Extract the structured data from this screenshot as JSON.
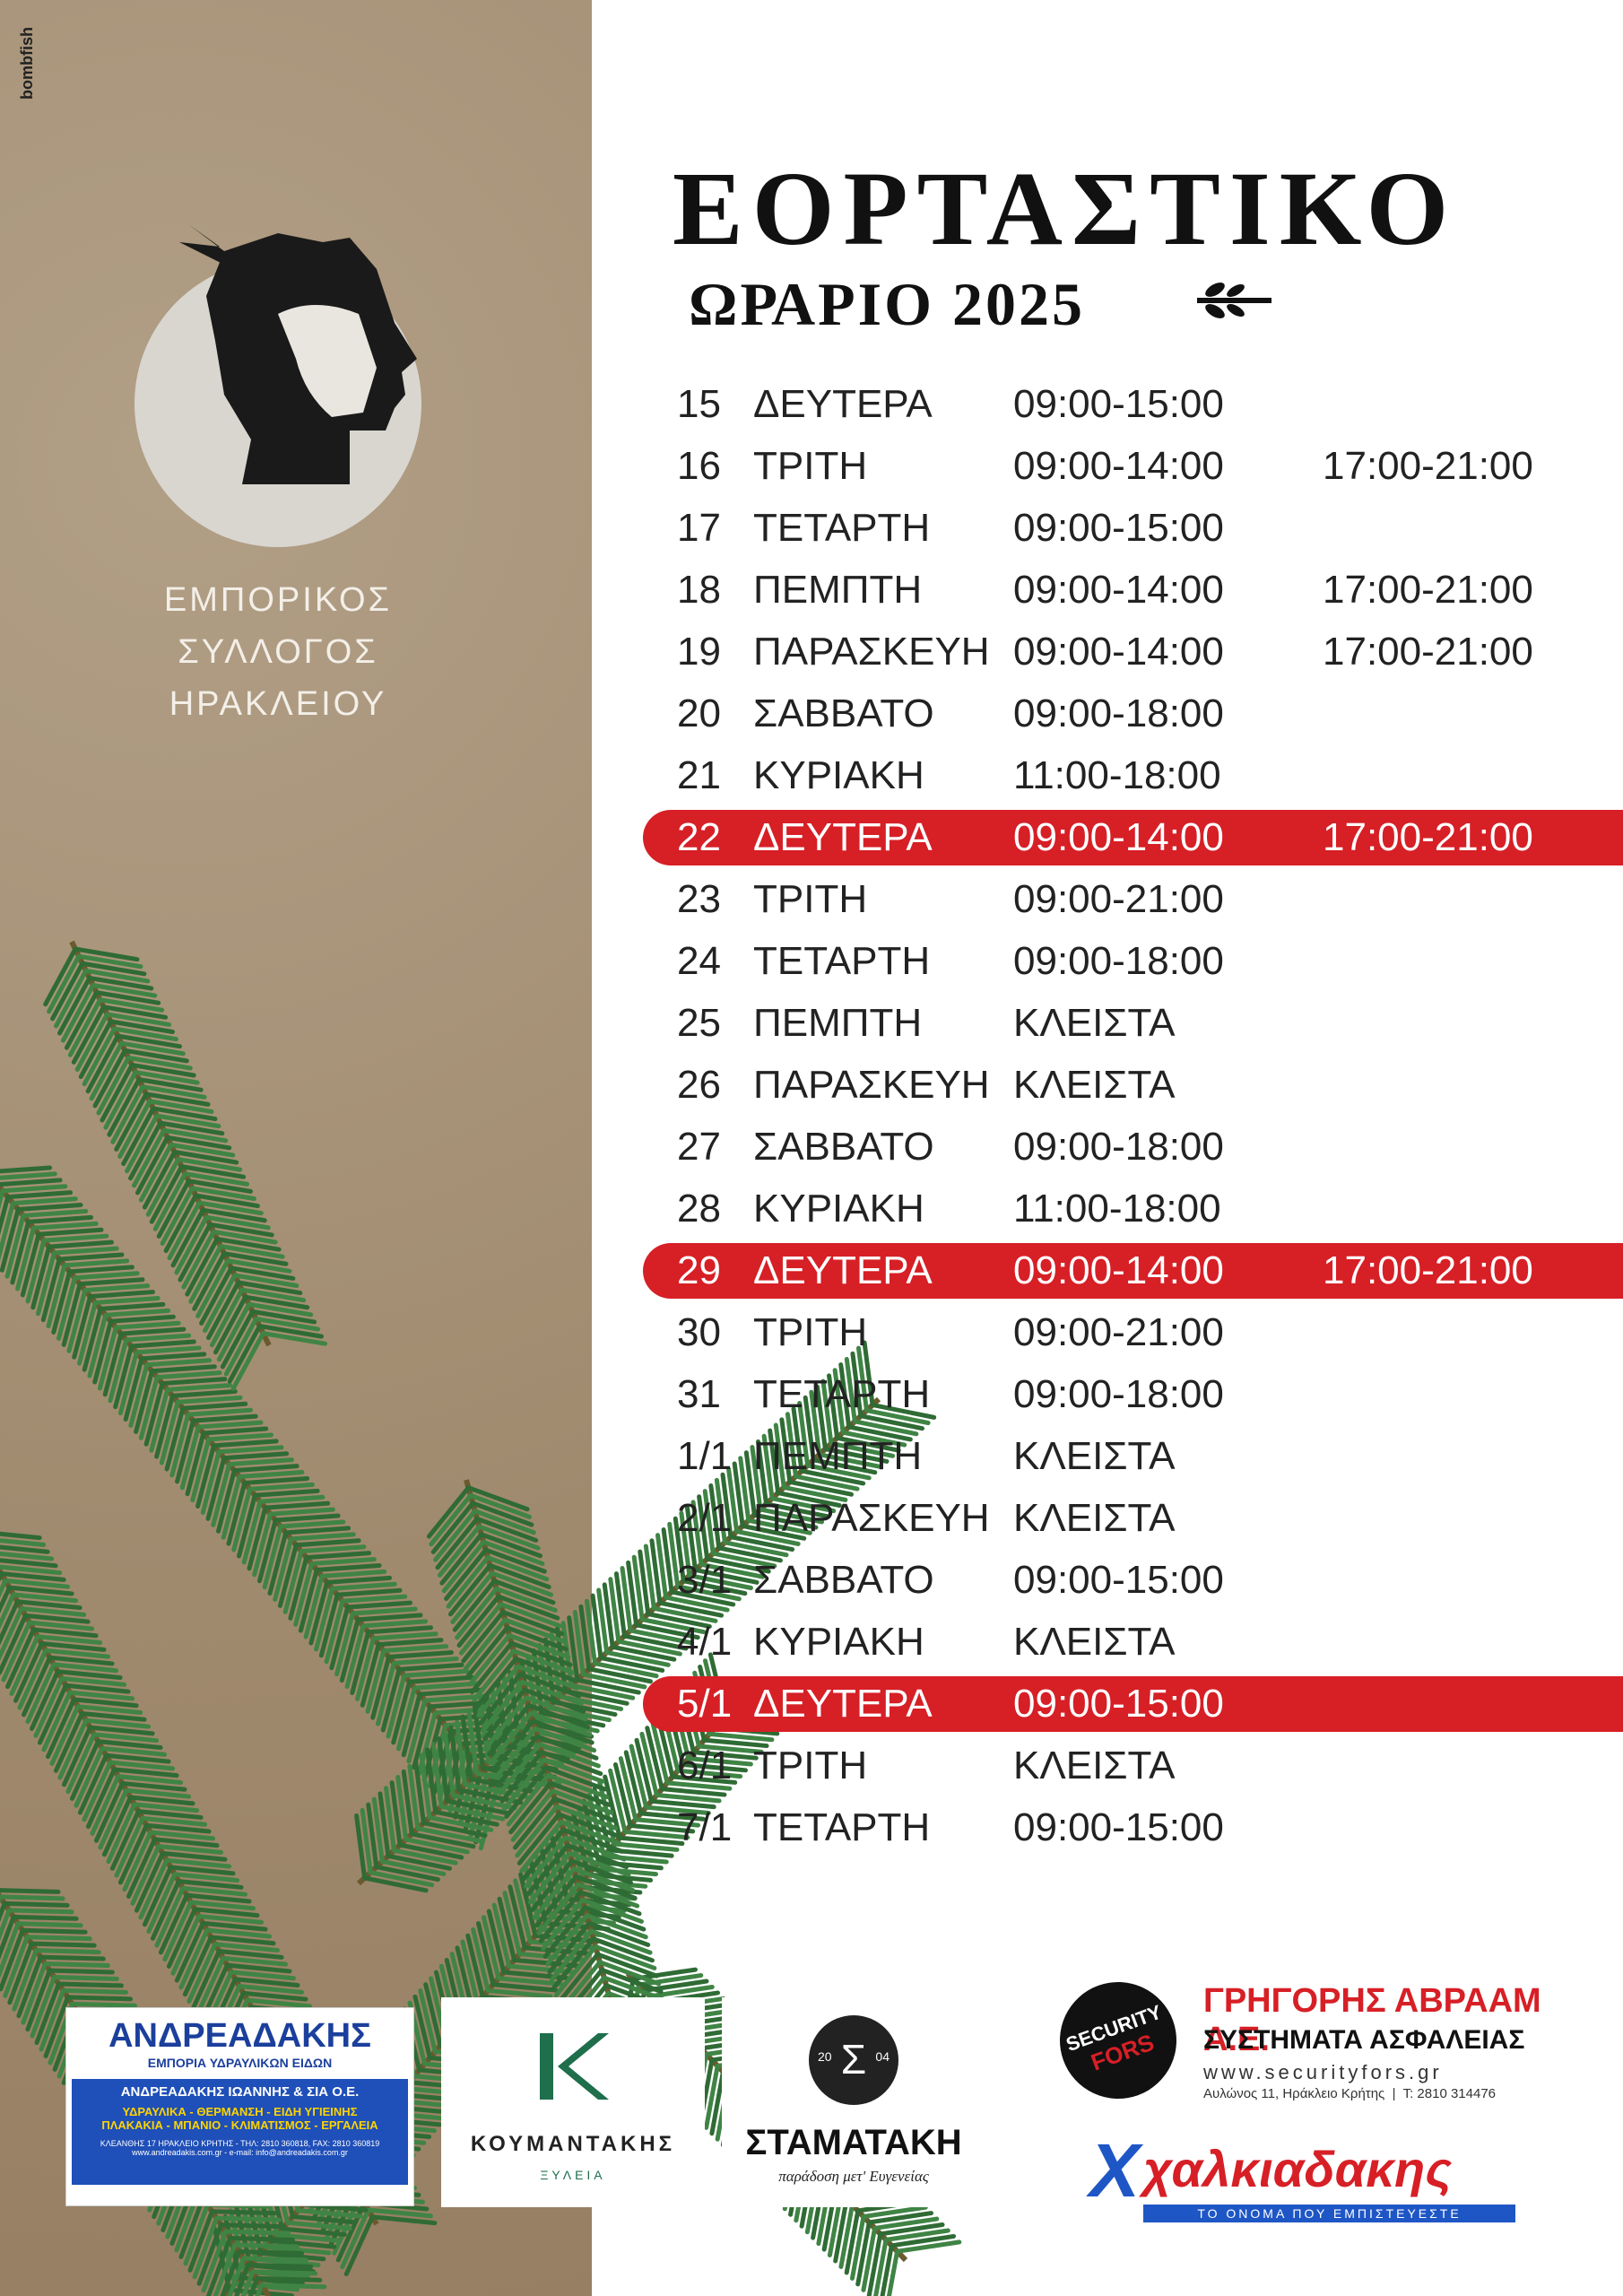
{
  "brand": "bombfish",
  "title": "ΕΟΡΤΑΣΤΙΚΟ",
  "subtitle": "ΩΡΑΡΙΟ 2025",
  "association": [
    "ΕΜΠΟΡΙΚΟΣ",
    "ΣΥΛΛΟΓΟΣ",
    "ΗΡΑΚΛΕΙΟΥ"
  ],
  "schedule": {
    "rows": [
      {
        "day": "15",
        "weekday": "ΔΕΥΤΕΡΑ",
        "hours": [
          "09:00-15:00"
        ],
        "highlight": false
      },
      {
        "day": "16",
        "weekday": "ΤΡΙΤΗ",
        "hours": [
          "09:00-14:00",
          "17:00-21:00"
        ],
        "highlight": false
      },
      {
        "day": "17",
        "weekday": "ΤΕΤΑΡΤΗ",
        "hours": [
          "09:00-15:00"
        ],
        "highlight": false
      },
      {
        "day": "18",
        "weekday": "ΠΕΜΠΤΗ",
        "hours": [
          "09:00-14:00",
          "17:00-21:00"
        ],
        "highlight": false
      },
      {
        "day": "19",
        "weekday": "ΠΑΡΑΣΚΕΥΗ",
        "hours": [
          "09:00-14:00",
          "17:00-21:00"
        ],
        "highlight": false
      },
      {
        "day": "20",
        "weekday": "ΣΑΒΒΑΤΟ",
        "hours": [
          "09:00-18:00"
        ],
        "highlight": false
      },
      {
        "day": "21",
        "weekday": "ΚΥΡΙΑΚΗ",
        "hours": [
          "11:00-18:00"
        ],
        "highlight": false
      },
      {
        "day": "22",
        "weekday": "ΔΕΥΤΕΡΑ",
        "hours": [
          "09:00-14:00",
          "17:00-21:00"
        ],
        "highlight": true
      },
      {
        "day": "23",
        "weekday": "ΤΡΙΤΗ",
        "hours": [
          "09:00-21:00"
        ],
        "highlight": false
      },
      {
        "day": "24",
        "weekday": "ΤΕΤΑΡΤΗ",
        "hours": [
          "09:00-18:00"
        ],
        "highlight": false
      },
      {
        "day": "25",
        "weekday": "ΠΕΜΠΤΗ",
        "hours": [
          "ΚΛΕΙΣΤΑ"
        ],
        "highlight": false
      },
      {
        "day": "26",
        "weekday": "ΠΑΡΑΣΚΕΥΗ",
        "hours": [
          "ΚΛΕΙΣΤΑ"
        ],
        "highlight": false
      },
      {
        "day": "27",
        "weekday": "ΣΑΒΒΑΤΟ",
        "hours": [
          "09:00-18:00"
        ],
        "highlight": false
      },
      {
        "day": "28",
        "weekday": "ΚΥΡΙΑΚΗ",
        "hours": [
          "11:00-18:00"
        ],
        "highlight": false
      },
      {
        "day": "29",
        "weekday": "ΔΕΥΤΕΡΑ",
        "hours": [
          "09:00-14:00",
          "17:00-21:00"
        ],
        "highlight": true
      },
      {
        "day": "30",
        "weekday": "ΤΡΙΤΗ",
        "hours": [
          "09:00-21:00"
        ],
        "highlight": false
      },
      {
        "day": "31",
        "weekday": "ΤΕΤΑΡΤΗ",
        "hours": [
          "09:00-18:00"
        ],
        "highlight": false
      },
      {
        "day": "1/1",
        "weekday": "ΠΕΜΠΤΗ",
        "hours": [
          "ΚΛΕΙΣΤΑ"
        ],
        "highlight": false
      },
      {
        "day": "2/1",
        "weekday": "ΠΑΡΑΣΚΕΥΗ",
        "hours": [
          "ΚΛΕΙΣΤΑ"
        ],
        "highlight": false
      },
      {
        "day": "3/1",
        "weekday": "ΣΑΒΒΑΤΟ",
        "hours": [
          "09:00-15:00"
        ],
        "highlight": false
      },
      {
        "day": "4/1",
        "weekday": "ΚΥΡΙΑΚΗ",
        "hours": [
          "ΚΛΕΙΣΤΑ"
        ],
        "highlight": false
      },
      {
        "day": "5/1",
        "weekday": "ΔΕΥΤΕΡΑ",
        "hours": [
          "09:00-15:00"
        ],
        "highlight": true
      },
      {
        "day": "6/1",
        "weekday": "ΤΡΙΤΗ",
        "hours": [
          "ΚΛΕΙΣΤΑ"
        ],
        "highlight": false
      },
      {
        "day": "7/1",
        "weekday": "ΤΕΤΑΡΤΗ",
        "hours": [
          "09:00-15:00"
        ],
        "highlight": false
      }
    ]
  },
  "sponsors": {
    "andreadakis": {
      "name": "ΑΝΔΡΕΑΔΑΚΗΣ",
      "tagline": "ΕΜΠΟΡΙΑ ΥΔΡΑΥΛΙΚΩΝ ΕΙΔΩΝ",
      "company": "ΑΝΔΡΕΑΔΑΚΗΣ ΙΩΑΝΝΗΣ & ΣΙΑ Ο.Ε.",
      "products": [
        "ΥΔΡΑΥΛΙΚΑ - ΘΕΡΜΑΝΣΗ - ΕΙΔΗ ΥΓΙΕΙΝΗΣ",
        "ΠΛΑΚΑΚΙΑ - ΜΠΑΝΙΟ - ΚΛΙΜΑΤΙΣΜΟΣ - ΕΡΓΑΛΕΙΑ"
      ],
      "address": "ΚΛΕΑΝΘΗΣ 17 ΗΡΑΚΛΕΙΟ ΚΡΗΤΗΣ - ΤΗΛ: 2810 360818, FAX: 2810 360819",
      "web": "www.andreadakis.com.gr - e-mail: info@andreadakis.com.gr"
    },
    "koumantakis": {
      "name": "ΚΟΥΜΑΝΤΑΚΗΣ",
      "tagline": "ΞΥΛΕΙΑ"
    },
    "stamataki": {
      "mark": "Σ",
      "years": [
        "20",
        "04"
      ],
      "name": "ΣΤΑΜΑΤΑΚΗ",
      "tagline": "παράδοση μετ' Ευγενείας"
    },
    "security": {
      "badge": [
        "SECURITY",
        "FORS"
      ],
      "name": "ΓΡΗΓΟΡΗΣ ΑΒΡΑΑΜ Α.Ε.",
      "tagline": "ΣΥΣΤΗΜΑΤΑ ΑΣΦΑΛΕΙΑΣ",
      "web": "www.securityfors.gr",
      "address": "Αυλώνος 11, Ηράκλειο Κρήτης  |  Τ: 2810 314476"
    },
    "chalkiadakis": {
      "mark": "X",
      "name": "χαλκιαδακης",
      "tagline": "ΤΟ ΟΝΟΜΑ ΠΟΥ ΕΜΠΙΣΤΕΥΕΣΤΕ"
    }
  }
}
